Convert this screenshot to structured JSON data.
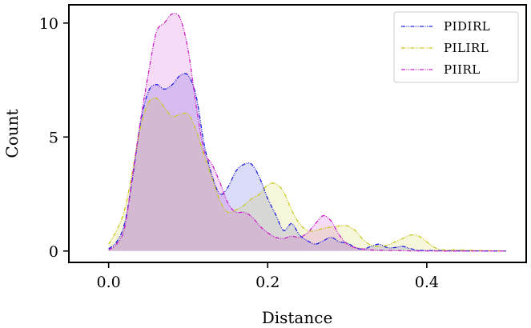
{
  "chart_data": {
    "type": "area",
    "xlabel": "Distance",
    "ylabel": "Count",
    "xlim": [
      -0.05,
      0.525
    ],
    "ylim": [
      -0.5,
      10.8
    ],
    "xticks": [
      0.0,
      0.2,
      0.4
    ],
    "xtick_labels": [
      "0.0",
      "0.2",
      "0.4"
    ],
    "yticks": [
      0,
      5,
      10
    ],
    "ytick_labels": [
      "0",
      "5",
      "10"
    ],
    "grid": false,
    "legend_position": "top-right",
    "series": [
      {
        "name": "PIDIRL",
        "color": "#1f1fe0",
        "fill": "#d6d6f8",
        "points": [
          [
            0.0,
            0.1
          ],
          [
            0.01,
            0.4
          ],
          [
            0.02,
            1.2
          ],
          [
            0.03,
            3.2
          ],
          [
            0.04,
            5.6
          ],
          [
            0.05,
            7.0
          ],
          [
            0.06,
            7.3
          ],
          [
            0.07,
            7.1
          ],
          [
            0.08,
            7.3
          ],
          [
            0.09,
            7.7
          ],
          [
            0.1,
            7.7
          ],
          [
            0.11,
            6.8
          ],
          [
            0.12,
            4.7
          ],
          [
            0.13,
            3.3
          ],
          [
            0.14,
            2.5
          ],
          [
            0.15,
            2.8
          ],
          [
            0.16,
            3.5
          ],
          [
            0.17,
            3.8
          ],
          [
            0.18,
            3.8
          ],
          [
            0.19,
            3.2
          ],
          [
            0.2,
            2.3
          ],
          [
            0.21,
            1.6
          ],
          [
            0.22,
            0.9
          ],
          [
            0.23,
            1.2
          ],
          [
            0.24,
            0.7
          ],
          [
            0.25,
            0.45
          ],
          [
            0.26,
            0.3
          ],
          [
            0.27,
            0.45
          ],
          [
            0.28,
            0.6
          ],
          [
            0.29,
            0.4
          ],
          [
            0.3,
            0.35
          ],
          [
            0.31,
            0.15
          ],
          [
            0.32,
            0.08
          ],
          [
            0.33,
            0.2
          ],
          [
            0.34,
            0.3
          ],
          [
            0.35,
            0.15
          ],
          [
            0.36,
            0.15
          ],
          [
            0.37,
            0.2
          ],
          [
            0.38,
            0.1
          ],
          [
            0.4,
            0.02
          ],
          [
            0.5,
            0.0
          ]
        ]
      },
      {
        "name": "PILIRL",
        "color": "#c8c81e",
        "fill": "#f4f4d4",
        "points": [
          [
            0.0,
            0.3
          ],
          [
            0.01,
            0.9
          ],
          [
            0.02,
            1.8
          ],
          [
            0.03,
            3.5
          ],
          [
            0.04,
            5.4
          ],
          [
            0.05,
            6.5
          ],
          [
            0.06,
            6.7
          ],
          [
            0.07,
            6.3
          ],
          [
            0.08,
            5.9
          ],
          [
            0.09,
            6.0
          ],
          [
            0.1,
            6.0
          ],
          [
            0.11,
            5.3
          ],
          [
            0.12,
            4.2
          ],
          [
            0.13,
            3.2
          ],
          [
            0.14,
            2.2
          ],
          [
            0.15,
            1.7
          ],
          [
            0.16,
            1.8
          ],
          [
            0.17,
            2.0
          ],
          [
            0.18,
            2.3
          ],
          [
            0.19,
            2.5
          ],
          [
            0.2,
            2.9
          ],
          [
            0.21,
            2.95
          ],
          [
            0.22,
            2.6
          ],
          [
            0.23,
            1.8
          ],
          [
            0.24,
            1.2
          ],
          [
            0.25,
            0.9
          ],
          [
            0.26,
            0.9
          ],
          [
            0.27,
            1.0
          ],
          [
            0.28,
            1.05
          ],
          [
            0.29,
            1.1
          ],
          [
            0.3,
            1.1
          ],
          [
            0.31,
            0.9
          ],
          [
            0.32,
            0.5
          ],
          [
            0.33,
            0.25
          ],
          [
            0.34,
            0.2
          ],
          [
            0.35,
            0.25
          ],
          [
            0.36,
            0.4
          ],
          [
            0.37,
            0.55
          ],
          [
            0.38,
            0.7
          ],
          [
            0.39,
            0.65
          ],
          [
            0.4,
            0.4
          ],
          [
            0.41,
            0.15
          ],
          [
            0.42,
            0.05
          ],
          [
            0.44,
            0.05
          ],
          [
            0.47,
            0.02
          ],
          [
            0.5,
            0.0
          ]
        ]
      },
      {
        "name": "PIIRL",
        "color": "#c81ec8",
        "fill": "#f6d4f4",
        "points": [
          [
            0.0,
            0.05
          ],
          [
            0.01,
            0.3
          ],
          [
            0.02,
            1.0
          ],
          [
            0.03,
            3.3
          ],
          [
            0.04,
            5.7
          ],
          [
            0.05,
            7.8
          ],
          [
            0.06,
            9.6
          ],
          [
            0.07,
            10.0
          ],
          [
            0.08,
            10.4
          ],
          [
            0.09,
            10.2
          ],
          [
            0.1,
            8.8
          ],
          [
            0.11,
            6.4
          ],
          [
            0.12,
            4.4
          ],
          [
            0.13,
            3.8
          ],
          [
            0.14,
            3.0
          ],
          [
            0.15,
            2.1
          ],
          [
            0.16,
            1.7
          ],
          [
            0.17,
            1.7
          ],
          [
            0.18,
            1.5
          ],
          [
            0.19,
            1.1
          ],
          [
            0.2,
            0.8
          ],
          [
            0.21,
            0.6
          ],
          [
            0.22,
            0.55
          ],
          [
            0.23,
            0.65
          ],
          [
            0.24,
            0.6
          ],
          [
            0.25,
            0.8
          ],
          [
            0.26,
            1.2
          ],
          [
            0.27,
            1.55
          ],
          [
            0.28,
            1.3
          ],
          [
            0.29,
            0.7
          ],
          [
            0.3,
            0.3
          ],
          [
            0.31,
            0.15
          ],
          [
            0.33,
            0.05
          ],
          [
            0.36,
            0.02
          ],
          [
            0.4,
            0.0
          ],
          [
            0.5,
            0.0
          ]
        ]
      }
    ]
  }
}
